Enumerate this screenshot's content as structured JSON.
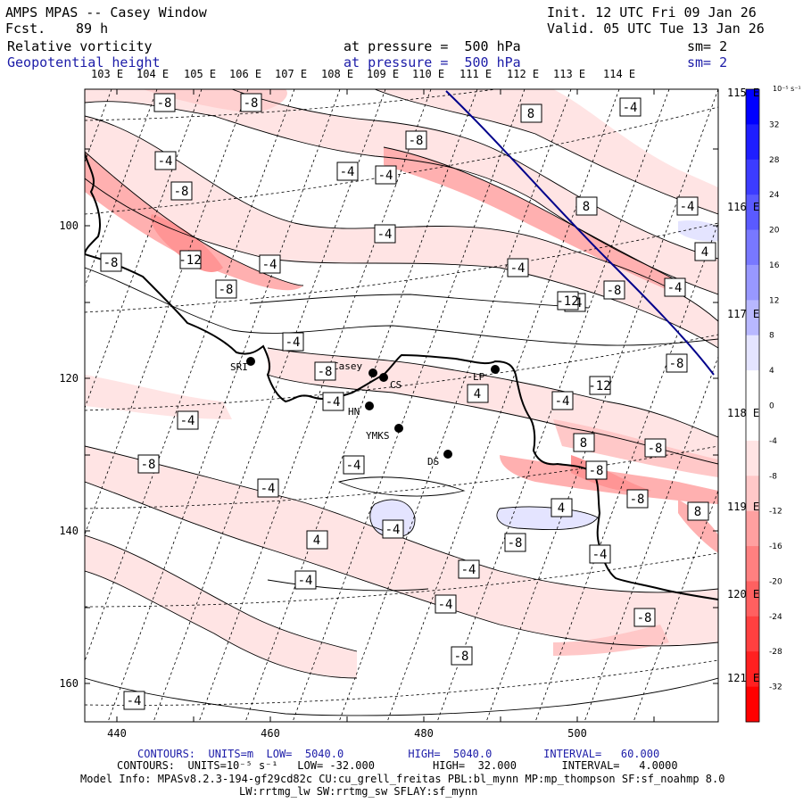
{
  "header": {
    "title": "AMPS MPAS -- Casey Window",
    "fcst_label": "Fcst.",
    "fcst_value": "89 h",
    "init": "Init. 12 UTC Fri 09 Jan 26",
    "valid": "Valid. 05 UTC Tue 13 Jan 26",
    "field1_name": "Relative vorticity",
    "field1_level": "at pressure =  500 hPa",
    "field1_sm": "sm= 2",
    "field2_name": "Geopotential height",
    "field2_level": "at pressure =  500 hPa",
    "field2_sm": "sm= 2"
  },
  "top_lon_labels": [
    "103 E",
    "104 E",
    "105 E",
    "106 E",
    "107 E",
    "108 E",
    "109 E",
    "110 E",
    "111 E",
    "112 E",
    "113 E",
    "114 E"
  ],
  "right_lon_labels": [
    "115 E",
    "116 E",
    "117 E",
    "118 E",
    "119 E",
    "120 E",
    "121 E"
  ],
  "x_axis_labels": [
    "440",
    "460",
    "480",
    "500"
  ],
  "y_axis_labels": [
    "100",
    "120",
    "140",
    "160"
  ],
  "colorbar": {
    "unit": "10⁻⁵ s⁻¹",
    "ticks": [
      "32",
      "28",
      "24",
      "20",
      "16",
      "12",
      "8",
      "4",
      "0",
      "-4",
      "-8",
      "-12",
      "-16",
      "-20",
      "-24",
      "-28",
      "-32"
    ],
    "colors": {
      "blue_strong": "#0000ff",
      "blue_light": "#e4e4ff",
      "red_light": "#ffe4e4",
      "red_strong": "#ff0000"
    }
  },
  "stations": [
    {
      "name": "SRI"
    },
    {
      "name": "Casey"
    },
    {
      "name": "CS"
    },
    {
      "name": "HN"
    },
    {
      "name": "YMKS"
    },
    {
      "name": "DS"
    },
    {
      "name": "LP"
    }
  ],
  "contour_labels": [
    "-8",
    "-8",
    "-4",
    "-8",
    "-4",
    "-4",
    "-8",
    "8",
    "-4",
    "-4",
    "-8",
    "-12",
    "-4",
    "-8",
    "-4",
    "-4",
    "-8",
    "8",
    "-4",
    "4",
    "-8",
    "-4",
    "-4",
    "-12",
    "-8",
    "-4",
    "4",
    "-4",
    "-4",
    "-12",
    "8",
    "-8",
    "-8",
    "-8",
    "8",
    "4",
    "-4",
    "-8",
    "4",
    "-4",
    "-4",
    "-4",
    "-4"
  ],
  "footer": {
    "line1": "CONTOURS:  UNITS=m  LOW=  5040.0          HIGH=  5040.0        INTERVAL=   60.000",
    "line2": "CONTOURS:  UNITS=10⁻⁵ s⁻¹   LOW= -32.000         HIGH=  32.000       INTERVAL=   4.0000",
    "line3": "Model Info: MPASv8.2.3-194-gf29cd82c CU:cu_grell_freitas PBL:bl_mynn MP:mp_thompson SF:sf_noahmp 8.0",
    "line4": "LW:rrtmg_lw SW:rrtmg_sw SFLAY:sf_mynn"
  }
}
